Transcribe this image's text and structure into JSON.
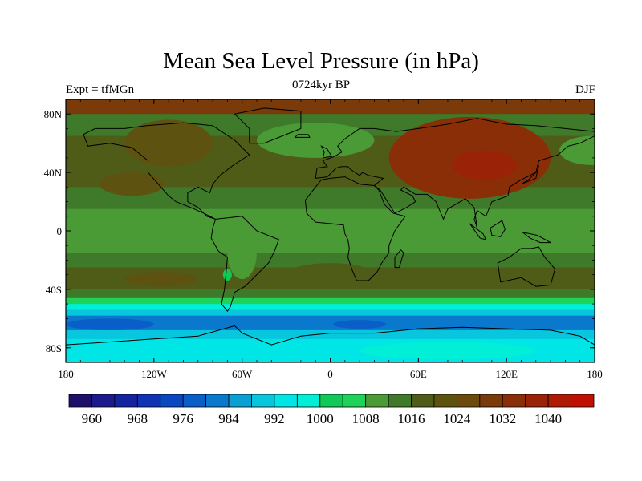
{
  "title": "Mean Sea Level Pressure (in hPa)",
  "subtitle_left": "Expt = tfMGn",
  "subtitle_center": "0724kyr BP",
  "subtitle_right": "DJF",
  "map": {
    "lon_range": [
      -180,
      180
    ],
    "lat_range": [
      -90,
      90
    ],
    "x_ticks": [
      {
        "lon": -180,
        "label": "180"
      },
      {
        "lon": -120,
        "label": "120W"
      },
      {
        "lon": -60,
        "label": "60W"
      },
      {
        "lon": 0,
        "label": "0"
      },
      {
        "lon": 60,
        "label": "60E"
      },
      {
        "lon": 120,
        "label": "120E"
      },
      {
        "lon": 180,
        "label": "180"
      }
    ],
    "y_ticks": [
      {
        "lat": 80,
        "label": "80N"
      },
      {
        "lat": 40,
        "label": "40N"
      },
      {
        "lat": 0,
        "label": "0"
      },
      {
        "lat": -40,
        "label": "40S"
      },
      {
        "lat": -80,
        "label": "80S"
      }
    ],
    "zonal_bands": [
      {
        "lat_top": 90,
        "lat_bottom": 80,
        "value": 1028
      },
      {
        "lat_top": 80,
        "lat_bottom": 65,
        "value": 1012
      },
      {
        "lat_top": 65,
        "lat_bottom": 30,
        "value": 1016
      },
      {
        "lat_top": 30,
        "lat_bottom": 15,
        "value": 1014
      },
      {
        "lat_top": 15,
        "lat_bottom": -15,
        "value": 1010
      },
      {
        "lat_top": -15,
        "lat_bottom": -25,
        "value": 1014
      },
      {
        "lat_top": -25,
        "lat_bottom": -40,
        "value": 1018
      },
      {
        "lat_top": -40,
        "lat_bottom": -46,
        "value": 1012
      },
      {
        "lat_top": -46,
        "lat_bottom": -50,
        "value": 1004
      },
      {
        "lat_top": -50,
        "lat_bottom": -54,
        "value": 996
      },
      {
        "lat_top": -54,
        "lat_bottom": -58,
        "value": 988
      },
      {
        "lat_top": -58,
        "lat_bottom": -68,
        "value": 980
      },
      {
        "lat_top": -68,
        "lat_bottom": -74,
        "value": 988
      },
      {
        "lat_top": -74,
        "lat_bottom": -90,
        "value": 994
      }
    ],
    "pressure_features": [
      {
        "name": "siberian-high",
        "lon": 95,
        "lat": 50,
        "rx_deg": 55,
        "ry_deg": 28,
        "value": 1032
      },
      {
        "name": "siberian-high-core",
        "lon": 105,
        "lat": 45,
        "rx_deg": 22,
        "ry_deg": 10,
        "value": 1036
      },
      {
        "name": "north-atlantic-low",
        "lon": -10,
        "lat": 62,
        "rx_deg": 40,
        "ry_deg": 12,
        "value": 1008
      },
      {
        "name": "north-pacific-low",
        "lon": 178,
        "lat": 55,
        "rx_deg": 22,
        "ry_deg": 10,
        "value": 1008
      },
      {
        "name": "north-america-high",
        "lon": -110,
        "lat": 60,
        "rx_deg": 30,
        "ry_deg": 16,
        "value": 1022
      },
      {
        "name": "pacific-high",
        "lon": -135,
        "lat": 32,
        "rx_deg": 22,
        "ry_deg": 8,
        "value": 1022
      },
      {
        "name": "south-pacific-high",
        "lon": -115,
        "lat": -33,
        "rx_deg": 25,
        "ry_deg": 5,
        "value": 1022
      },
      {
        "name": "south-america-low",
        "lon": -60,
        "lat": -15,
        "rx_deg": 10,
        "ry_deg": 18,
        "value": 1008
      },
      {
        "name": "south-atlantic-high",
        "lon": 0,
        "lat": -30,
        "rx_deg": 30,
        "ry_deg": 8,
        "value": 1016
      },
      {
        "name": "indian-ocean-high",
        "lon": 75,
        "lat": -33,
        "rx_deg": 35,
        "ry_deg": 5,
        "value": 1016
      },
      {
        "name": "patagonia-low",
        "lon": -70,
        "lat": -30,
        "rx_deg": 3,
        "ry_deg": 4,
        "value": 1000
      },
      {
        "name": "antarctica-high",
        "lon": 80,
        "lat": -82,
        "rx_deg": 60,
        "ry_deg": 6,
        "value": 998
      },
      {
        "name": "amundsen-low",
        "lon": -150,
        "lat": -64,
        "rx_deg": 30,
        "ry_deg": 4,
        "value": 976
      },
      {
        "name": "weddell-low",
        "lon": 20,
        "lat": -64,
        "rx_deg": 18,
        "ry_deg": 3,
        "value": 976
      }
    ]
  },
  "colorbar": {
    "levels": [
      956,
      960,
      964,
      968,
      972,
      976,
      980,
      984,
      988,
      992,
      996,
      1000,
      1004,
      1008,
      1012,
      1016,
      1020,
      1024,
      1028,
      1032,
      1036,
      1040,
      1044
    ],
    "colors": [
      "#1e0f6b",
      "#1c1a8c",
      "#14239f",
      "#0f33b3",
      "#0a48c2",
      "#0a5ec8",
      "#0a78cc",
      "#0aa0d4",
      "#08c6de",
      "#00e5e5",
      "#00efd6",
      "#10c957",
      "#1ed25a",
      "#4a9a36",
      "#3f7a2a",
      "#4e5c18",
      "#5e5210",
      "#6b4a0c",
      "#7a3a0a",
      "#8a2e08",
      "#9a2206",
      "#b01a04",
      "#c01004"
    ],
    "labels": [
      {
        "level": 960,
        "label": "960"
      },
      {
        "level": 968,
        "label": "968"
      },
      {
        "level": 976,
        "label": "976"
      },
      {
        "level": 984,
        "label": "984"
      },
      {
        "level": 992,
        "label": "992"
      },
      {
        "level": 1000,
        "label": "1000"
      },
      {
        "level": 1008,
        "label": "1008"
      },
      {
        "level": 1016,
        "label": "1016"
      },
      {
        "level": 1024,
        "label": "1024"
      },
      {
        "level": 1032,
        "label": "1032"
      },
      {
        "level": 1040,
        "label": "1040"
      }
    ]
  },
  "coastline_color": "#000000"
}
